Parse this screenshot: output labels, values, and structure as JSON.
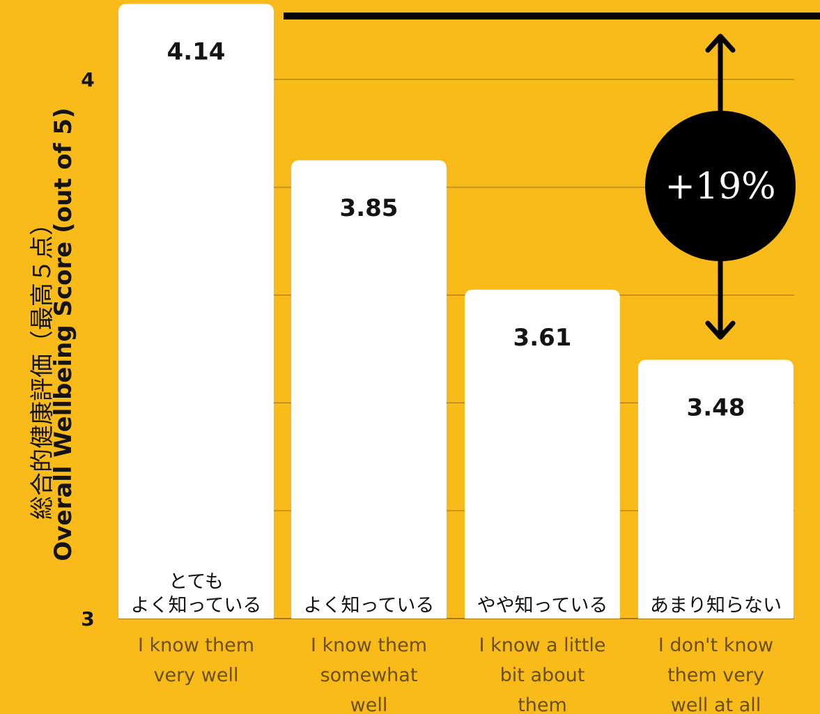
{
  "chart_data": {
    "type": "bar",
    "ylabel_jp": "総合的健康評価（最高５点）",
    "ylabel": "Overall Wellbeing Score (out of 5)",
    "ylim": [
      3,
      4.2
    ],
    "yticks": [
      {
        "value": 3,
        "label": "3"
      },
      {
        "value": 4,
        "label": "4"
      }
    ],
    "gridlines": [
      3.2,
      3.4,
      3.6,
      3.8,
      4.0
    ],
    "categories": [
      {
        "jp_lines": [
          "とても",
          "よく知っている"
        ],
        "en_lines": [
          "I know them",
          "very well"
        ]
      },
      {
        "jp_lines": [
          "よく知っている"
        ],
        "en_lines": [
          "I know them",
          "somewhat",
          "well"
        ]
      },
      {
        "jp_lines": [
          "やや知っている"
        ],
        "en_lines": [
          "I know a little",
          "bit about",
          "them"
        ]
      },
      {
        "jp_lines": [
          "あまり知らない"
        ],
        "en_lines": [
          "I don't know",
          "them very",
          "well at all"
        ]
      }
    ],
    "values": [
      4.14,
      3.85,
      3.61,
      3.48
    ],
    "value_labels": [
      "4.14",
      "3.85",
      "3.61",
      "3.48"
    ],
    "annotation": {
      "label": "+19%",
      "from_category_index": 3,
      "to_category_index": 0
    },
    "colors": {
      "background": "#F9BB19",
      "bar": "#FFFFFF",
      "text": "#141414",
      "annotation_circle": "#000000",
      "annotation_text": "#FFFFFF"
    }
  }
}
